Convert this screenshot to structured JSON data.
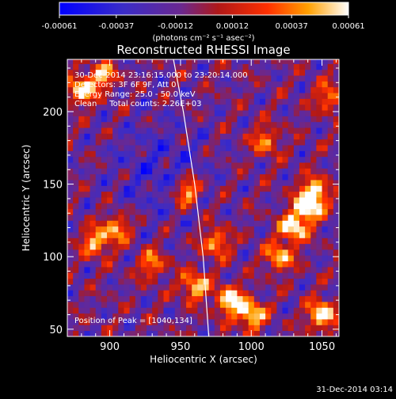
{
  "chart_data": {
    "type": "heatmap",
    "title": "Reconstructed RHESSI Image",
    "xlabel": "Heliocentric X (arcsec)",
    "ylabel": "Heliocentric Y (arcsec)",
    "xlim": [
      870,
      1062
    ],
    "ylim": [
      45,
      236
    ],
    "x_ticks": [
      "900",
      "950",
      "1000",
      "1050"
    ],
    "x_tick_values": [
      900,
      950,
      1000,
      1050
    ],
    "y_ticks": [
      "50",
      "100",
      "150",
      "200"
    ],
    "y_tick_values": [
      50,
      100,
      150,
      200
    ],
    "colorbar": {
      "ticks": [
        "-0.00061",
        "-0.00037",
        "-0.00012",
        "0.00012",
        "0.00037",
        "0.00061"
      ],
      "tick_values": [
        -0.00061,
        -0.00037,
        -0.00012,
        0.00012,
        0.00037,
        0.00061
      ],
      "range": [
        -0.00061,
        0.00061
      ],
      "units": "(photons cm⁻² s⁻¹ asec⁻²)"
    },
    "annotations": [
      "30-Dec-2014 23:16:15.000 to 23:20:14.000",
      "Detectors: 3F 6F 9F, Att 0",
      "Energy Range: 25.0 - 50.0 keV",
      "Clean     Total counts: 2.26E+03"
    ],
    "peak_label": "Position of Peak = [1040,134]",
    "peak_position": [
      1040,
      134
    ],
    "limb_curve": [
      [
        945,
        236
      ],
      [
        952,
        200
      ],
      [
        960,
        150
      ],
      [
        966,
        100
      ],
      [
        970,
        45
      ]
    ],
    "hotspots": [
      {
        "x": 1040,
        "y": 134,
        "v": 1.0
      },
      {
        "x": 1030,
        "y": 120,
        "v": 0.9
      },
      {
        "x": 1045,
        "y": 145,
        "v": 0.85
      },
      {
        "x": 985,
        "y": 70,
        "v": 0.95
      },
      {
        "x": 1000,
        "y": 60,
        "v": 0.9
      },
      {
        "x": 1050,
        "y": 60,
        "v": 0.95
      },
      {
        "x": 960,
        "y": 80,
        "v": 0.8
      },
      {
        "x": 880,
        "y": 215,
        "v": 0.85
      },
      {
        "x": 895,
        "y": 225,
        "v": 0.7
      },
      {
        "x": 955,
        "y": 145,
        "v": 0.8
      },
      {
        "x": 890,
        "y": 110,
        "v": 0.75
      },
      {
        "x": 905,
        "y": 120,
        "v": 0.7
      },
      {
        "x": 1010,
        "y": 180,
        "v": 0.6
      },
      {
        "x": 1020,
        "y": 100,
        "v": 0.75
      },
      {
        "x": 930,
        "y": 95,
        "v": 0.6
      },
      {
        "x": 975,
        "y": 110,
        "v": 0.7
      },
      {
        "x": 1055,
        "y": 210,
        "v": 0.6
      }
    ]
  },
  "footer": {
    "timestamp": "31-Dec-2014 03:14"
  }
}
